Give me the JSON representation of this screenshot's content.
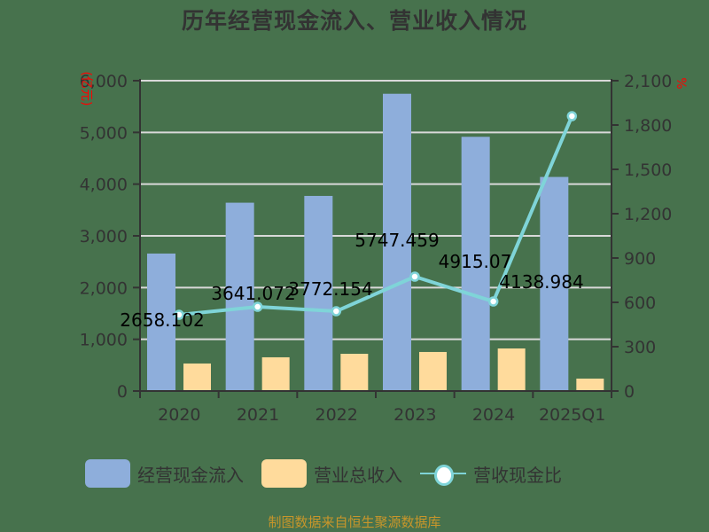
{
  "title": "历年经营现金流入、营业收入情况",
  "left_axis": {
    "unit": "亿元",
    "ticks": [
      "0",
      "1,000",
      "2,000",
      "3,000",
      "4,000",
      "5,000",
      "6,000"
    ],
    "max": 6000
  },
  "right_axis": {
    "unit": "%",
    "ticks": [
      "0",
      "300",
      "600",
      "900",
      "1,200",
      "1,500",
      "1,800",
      "2,100"
    ],
    "max": 2100
  },
  "legend": {
    "items": [
      {
        "label": "经营现金流入",
        "color": "#8eaedb",
        "type": "bar"
      },
      {
        "label": "营业总收入",
        "color": "#ffdb9c",
        "type": "bar"
      },
      {
        "label": "营收现金比",
        "color": "#7fd4d8",
        "type": "line"
      }
    ]
  },
  "footer": "制图数据来自恒生聚源数据库",
  "chart_data": {
    "type": "bar",
    "title": "历年经营现金流入、营业收入情况",
    "categories": [
      "2020",
      "2021",
      "2022",
      "2023",
      "2024",
      "2025Q1"
    ],
    "series": [
      {
        "name": "经营现金流入",
        "type": "bar",
        "axis": "left",
        "color": "#8eaedb",
        "values": [
          2658.102,
          3641.072,
          3772.154,
          5747.459,
          4915.07,
          4138.984
        ],
        "labels": [
          "2658.102",
          "3641.072",
          "3772.154",
          "5747.459",
          "4915.07",
          "4138.984"
        ]
      },
      {
        "name": "营业总收入",
        "type": "bar",
        "axis": "left",
        "color": "#ffdb9c",
        "values": [
          532,
          652,
          720,
          755,
          823,
          240
        ]
      },
      {
        "name": "营收现金比",
        "type": "line",
        "axis": "right",
        "color": "#7fd4d8",
        "values": [
          516,
          570,
          540,
          774,
          606,
          1860
        ]
      }
    ],
    "ylabel": "亿元",
    "ylabel_right": "%",
    "ylim": [
      0,
      6000
    ],
    "ylim_right": [
      0,
      2100
    ],
    "grid": true,
    "legend_position": "bottom"
  }
}
